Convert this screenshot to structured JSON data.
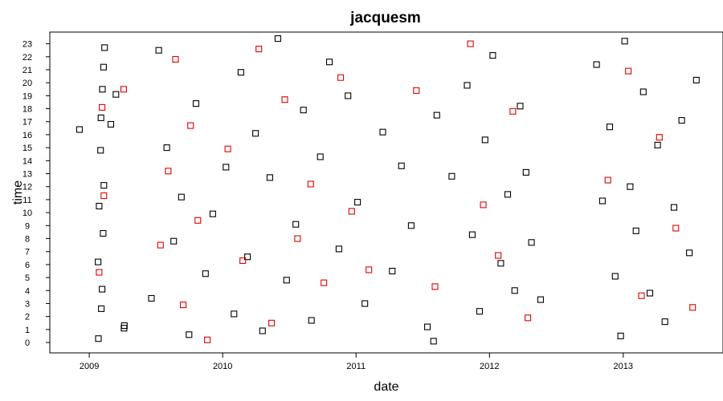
{
  "chart_data": {
    "type": "scatter",
    "title": "jacquesm",
    "xlabel": "date",
    "ylabel": "time",
    "x_tick_labels": [
      "2009",
      "2010",
      "2011",
      "2012",
      "2013"
    ],
    "y_tick_labels": [
      "0",
      "1",
      "2",
      "3",
      "4",
      "5",
      "6",
      "7",
      "8",
      "9",
      "10",
      "11",
      "12",
      "13",
      "14",
      "15",
      "16",
      "17",
      "18",
      "19",
      "20",
      "21",
      "22",
      "23"
    ],
    "xlim": [
      "2008-09-15",
      "2013-10-01"
    ],
    "ylim": [
      -0.8,
      23.9
    ],
    "grid": false,
    "legend": "none",
    "marker": "square",
    "colors": {
      "comment": "#000000",
      "submission": "#e00000"
    },
    "series": [
      {
        "color": "#000000",
        "x": [
          "2008-12-05",
          "2009-01-25",
          "2009-01-28",
          "2009-02-01",
          "2009-02-03",
          "2009-02-06",
          "2009-02-08",
          "2009-02-10",
          "2009-02-12",
          "2009-01-26",
          "2009-02-02",
          "2009-02-05",
          "2009-02-09",
          "2009-04-06",
          "2009-04-07",
          "2009-03-01",
          "2009-03-15",
          "2009-06-20",
          "2009-07-10",
          "2009-08-01",
          "2009-08-20",
          "2009-09-10",
          "2009-10-01",
          "2009-10-20",
          "2009-11-15",
          "2009-12-05",
          "2010-01-10",
          "2010-02-01",
          "2010-02-20",
          "2010-03-10",
          "2010-04-01",
          "2010-04-20",
          "2010-05-10",
          "2010-06-01",
          "2010-06-25",
          "2010-07-20",
          "2010-08-10",
          "2010-09-01",
          "2010-09-25",
          "2010-10-20",
          "2010-11-15",
          "2010-12-10",
          "2011-01-05",
          "2011-01-25",
          "2011-03-15",
          "2011-04-10",
          "2011-05-05",
          "2011-06-01",
          "2011-07-15",
          "2011-08-01",
          "2011-08-10",
          "2011-09-20",
          "2011-11-01",
          "2011-11-15",
          "2011-12-05",
          "2011-12-20",
          "2012-01-10",
          "2012-02-01",
          "2012-02-20",
          "2012-03-10",
          "2012-03-25",
          "2012-04-10",
          "2012-04-25",
          "2012-05-20",
          "2012-10-20",
          "2012-11-05",
          "2012-11-25",
          "2012-12-10",
          "2012-12-25",
          "2013-01-05",
          "2013-01-20",
          "2013-02-05",
          "2013-02-25",
          "2013-03-15",
          "2013-04-05",
          "2013-04-25",
          "2013-05-20",
          "2013-06-10",
          "2013-07-01",
          "2013-07-20"
        ],
        "y": [
          16.4,
          6.2,
          10.5,
          14.8,
          2.6,
          19.5,
          8.4,
          12.1,
          22.7,
          0.3,
          17.3,
          4.1,
          21.2,
          1.1,
          1.3,
          16.8,
          19.1,
          3.4,
          22.5,
          15.0,
          7.8,
          11.2,
          0.6,
          18.4,
          5.3,
          9.9,
          13.5,
          2.2,
          20.8,
          6.6,
          16.1,
          0.9,
          12.7,
          23.4,
          4.8,
          9.1,
          17.9,
          1.7,
          14.3,
          21.6,
          7.2,
          19.0,
          10.8,
          3.0,
          16.2,
          5.5,
          13.6,
          9.0,
          1.2,
          0.1,
          17.5,
          12.8,
          19.8,
          8.3,
          2.4,
          15.6,
          22.1,
          6.1,
          11.4,
          4.0,
          18.2,
          13.1,
          7.7,
          3.3,
          21.4,
          10.9,
          16.6,
          5.1,
          0.5,
          23.2,
          12.0,
          8.6,
          19.3,
          3.8,
          15.2,
          1.6,
          10.4,
          17.1,
          6.9,
          20.2
        ]
      },
      {
        "color": "#e00000",
        "x": [
          "2009-01-28",
          "2009-02-05",
          "2009-02-10",
          "2009-04-05",
          "2009-07-15",
          "2009-08-05",
          "2009-08-25",
          "2009-09-15",
          "2009-10-05",
          "2009-10-25",
          "2009-11-20",
          "2010-01-15",
          "2010-02-25",
          "2010-04-10",
          "2010-05-15",
          "2010-06-20",
          "2010-07-25",
          "2010-08-30",
          "2010-10-05",
          "2010-11-20",
          "2010-12-20",
          "2011-02-05",
          "2011-06-15",
          "2011-08-05",
          "2011-11-10",
          "2011-12-15",
          "2012-01-25",
          "2012-03-05",
          "2012-04-15",
          "2012-11-20",
          "2013-01-15",
          "2013-02-20",
          "2013-04-10",
          "2013-05-25",
          "2013-07-10"
        ],
        "y": [
          5.4,
          18.1,
          11.3,
          19.5,
          7.5,
          13.2,
          21.8,
          2.9,
          16.7,
          9.4,
          0.2,
          14.9,
          6.3,
          22.6,
          1.5,
          18.7,
          8.0,
          12.2,
          4.6,
          20.4,
          10.1,
          5.6,
          19.4,
          4.3,
          23.0,
          10.6,
          6.7,
          17.8,
          1.9,
          12.5,
          20.9,
          3.6,
          15.8,
          8.8,
          2.7
        ]
      }
    ]
  }
}
